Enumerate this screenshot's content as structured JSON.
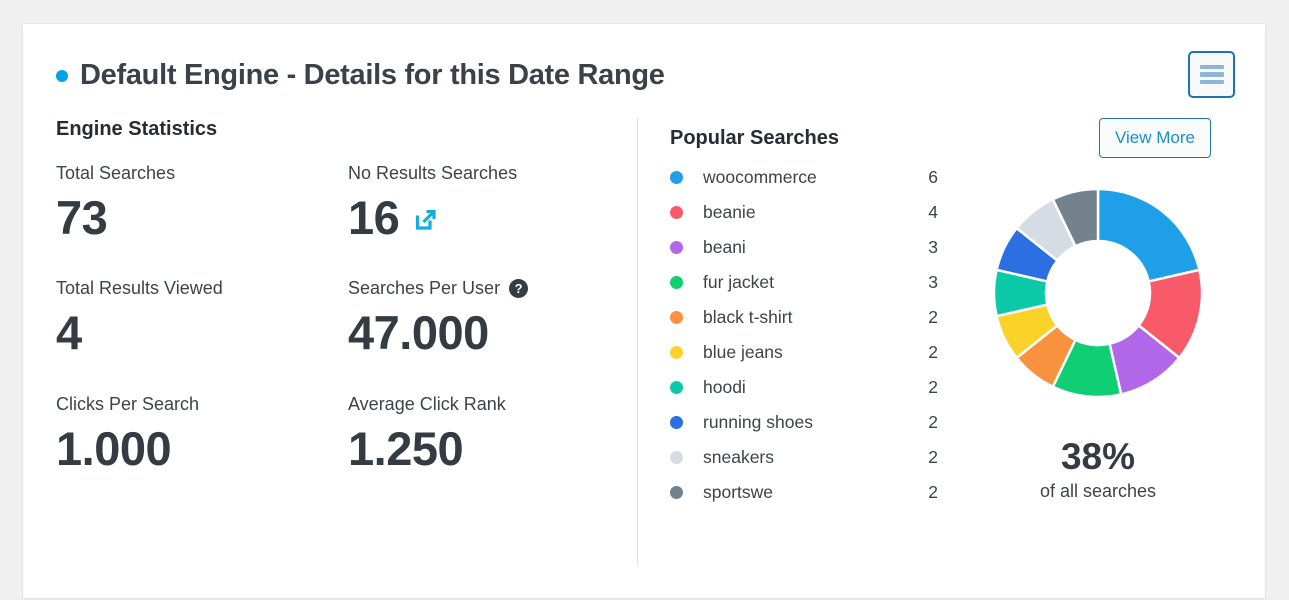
{
  "header": {
    "title": "Default Engine - Details for this Date Range",
    "bullet_color": "#00a3e8"
  },
  "engine_stats": {
    "heading": "Engine Statistics",
    "stats": [
      {
        "label": "Total Searches",
        "value": "73"
      },
      {
        "label": "No Results Searches",
        "value": "16",
        "icon": "external-link-icon"
      },
      {
        "label": "Total Results Viewed",
        "value": "4"
      },
      {
        "label": "Searches Per User",
        "value": "47.000",
        "icon": "help-icon"
      },
      {
        "label": "Clicks Per Search",
        "value": "1.000"
      },
      {
        "label": "Average Click Rank",
        "value": "1.250"
      }
    ]
  },
  "popular_searches": {
    "heading": "Popular Searches",
    "view_more_label": "View More",
    "items": [
      {
        "term": "woocommerce",
        "count": 6,
        "color": "#1e9fe8"
      },
      {
        "term": "beanie",
        "count": 4,
        "color": "#f95a69"
      },
      {
        "term": "beani",
        "count": 3,
        "color": "#b266e8"
      },
      {
        "term": "fur jacket",
        "count": 3,
        "color": "#10ce73"
      },
      {
        "term": "black t-shirt",
        "count": 2,
        "color": "#f8923e"
      },
      {
        "term": "blue jeans",
        "count": 2,
        "color": "#fbd22a"
      },
      {
        "term": "hoodi",
        "count": 2,
        "color": "#0cc9a7"
      },
      {
        "term": "running shoes",
        "count": 2,
        "color": "#2b6fe3"
      },
      {
        "term": "sneakers",
        "count": 2,
        "color": "#d6dce4"
      },
      {
        "term": "sportswe",
        "count": 2,
        "color": "#73828c"
      }
    ],
    "summary": {
      "percent": "38%",
      "caption": "of all searches"
    }
  },
  "chart_data": {
    "type": "pie",
    "title": "Popular Searches share of all searches",
    "categories": [
      "woocommerce",
      "beanie",
      "beani",
      "fur jacket",
      "black t-shirt",
      "blue jeans",
      "hoodi",
      "running shoes",
      "sneakers",
      "sportswe"
    ],
    "values": [
      6,
      4,
      3,
      3,
      2,
      2,
      2,
      2,
      2,
      2
    ],
    "colors": [
      "#1e9fe8",
      "#f95a69",
      "#b266e8",
      "#10ce73",
      "#f8923e",
      "#fbd22a",
      "#0cc9a7",
      "#2b6fe3",
      "#d6dce4",
      "#73828c"
    ],
    "donut_hole": 0.5,
    "start_angle_deg": 0,
    "direction": "clockwise",
    "legend_position": "left-list",
    "center_label": "38%",
    "center_sublabel": "of all searches"
  }
}
